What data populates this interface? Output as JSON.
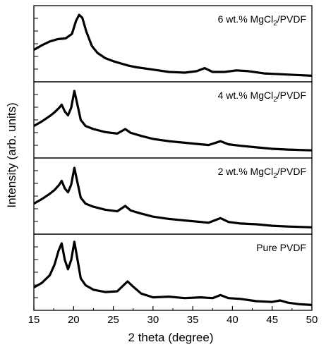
{
  "chart_data": {
    "type": "line",
    "xlabel": "2 theta (degree)",
    "ylabel": "Intensity (arb. units)",
    "xlim": [
      15,
      50
    ],
    "x_ticks": [
      "15",
      "20",
      "25",
      "30",
      "35",
      "40",
      "45",
      "50"
    ],
    "grid": false,
    "legend": "none",
    "panels": [
      {
        "label_main": "6 wt.% MgCl",
        "label_sub": "2",
        "label_end": "/PVDF",
        "x": [
          15,
          16,
          17,
          18,
          19,
          19.8,
          20.3,
          20.7,
          21.1,
          21.6,
          22.3,
          23,
          24,
          25,
          26,
          27,
          28,
          30,
          32,
          34,
          35.5,
          36.5,
          37.5,
          39,
          40.5,
          42,
          44,
          46,
          48,
          50
        ],
        "y": [
          0.42,
          0.48,
          0.53,
          0.56,
          0.57,
          0.63,
          0.8,
          0.88,
          0.84,
          0.66,
          0.47,
          0.38,
          0.31,
          0.27,
          0.24,
          0.21,
          0.19,
          0.16,
          0.13,
          0.12,
          0.14,
          0.18,
          0.13,
          0.13,
          0.15,
          0.14,
          0.11,
          0.1,
          0.09,
          0.08
        ]
      },
      {
        "label_main": "4 wt.% MgCl",
        "label_sub": "2",
        "label_end": "/PVDF",
        "x": [
          15,
          16,
          17,
          17.6,
          18.2,
          18.5,
          18.9,
          19.3,
          19.7,
          20.1,
          20.4,
          20.9,
          21.5,
          22.5,
          24,
          25.5,
          26.5,
          27.2,
          28.5,
          30,
          32,
          34,
          36,
          37,
          38.5,
          39.5,
          41,
          43,
          45,
          47,
          50
        ],
        "y": [
          0.42,
          0.48,
          0.55,
          0.6,
          0.66,
          0.7,
          0.61,
          0.56,
          0.66,
          0.88,
          0.74,
          0.5,
          0.42,
          0.38,
          0.34,
          0.32,
          0.38,
          0.33,
          0.29,
          0.25,
          0.22,
          0.2,
          0.18,
          0.17,
          0.22,
          0.18,
          0.16,
          0.14,
          0.12,
          0.11,
          0.1
        ]
      },
      {
        "label_main": "2 wt.% MgCl",
        "label_sub": "2",
        "label_end": "/PVDF",
        "x": [
          15,
          16,
          17,
          17.6,
          18.2,
          18.5,
          18.9,
          19.3,
          19.7,
          20.1,
          20.4,
          20.9,
          21.5,
          22.5,
          24,
          25.5,
          26.5,
          27.2,
          28.5,
          30,
          32,
          34,
          36,
          37,
          38.5,
          39.5,
          41,
          43,
          45,
          47,
          50
        ],
        "y": [
          0.4,
          0.46,
          0.53,
          0.58,
          0.65,
          0.7,
          0.6,
          0.55,
          0.65,
          0.87,
          0.72,
          0.48,
          0.4,
          0.36,
          0.32,
          0.3,
          0.37,
          0.31,
          0.27,
          0.23,
          0.2,
          0.18,
          0.16,
          0.15,
          0.21,
          0.16,
          0.14,
          0.13,
          0.11,
          0.1,
          0.09
        ]
      },
      {
        "label_main": "Pure PVDF",
        "label_sub": "",
        "label_end": "",
        "x": [
          15,
          16,
          17,
          17.6,
          18.1,
          18.5,
          18.9,
          19.3,
          19.7,
          20.1,
          20.4,
          20.9,
          21.5,
          22.5,
          24,
          25.5,
          26.3,
          26.8,
          27.4,
          28.5,
          30,
          32,
          34,
          36,
          37.5,
          38.5,
          39.5,
          41,
          43,
          45,
          46,
          47,
          48.5,
          50
        ],
        "y": [
          0.3,
          0.36,
          0.46,
          0.6,
          0.78,
          0.88,
          0.66,
          0.54,
          0.66,
          0.9,
          0.72,
          0.42,
          0.33,
          0.27,
          0.24,
          0.25,
          0.33,
          0.38,
          0.32,
          0.22,
          0.17,
          0.18,
          0.16,
          0.17,
          0.16,
          0.2,
          0.16,
          0.15,
          0.12,
          0.11,
          0.13,
          0.1,
          0.08,
          0.07
        ]
      }
    ]
  }
}
